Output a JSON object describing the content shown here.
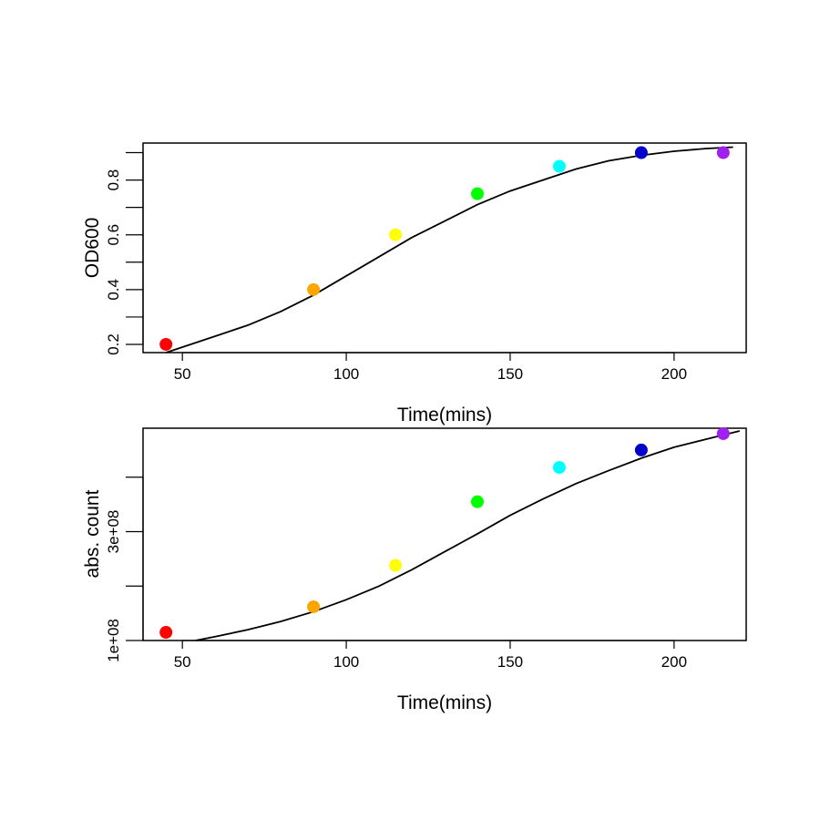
{
  "chart_data": [
    {
      "type": "scatter",
      "xlabel": "Time(mins)",
      "ylabel": "OD600",
      "xlim": [
        38,
        222
      ],
      "ylim": [
        0.17,
        0.935
      ],
      "x_ticks": [
        50,
        100,
        150,
        200
      ],
      "y_ticks": [
        0.2,
        0.3,
        0.4,
        0.5,
        0.6,
        0.7,
        0.8,
        0.9
      ],
      "y_tick_labels": [
        "0.2",
        "",
        "0.4",
        "",
        "0.6",
        "",
        "0.8",
        ""
      ],
      "points": [
        {
          "x": 45,
          "y": 0.2,
          "color": "#ff0000"
        },
        {
          "x": 90,
          "y": 0.4,
          "color": "#ffa500"
        },
        {
          "x": 115,
          "y": 0.6,
          "color": "#ffff00"
        },
        {
          "x": 140,
          "y": 0.75,
          "color": "#00ff00"
        },
        {
          "x": 165,
          "y": 0.85,
          "color": "#00ffff"
        },
        {
          "x": 190,
          "y": 0.9,
          "color": "#0000cd"
        },
        {
          "x": 215,
          "y": 0.9,
          "color": "#a020f0"
        }
      ],
      "fit_curve": {
        "x": [
          45,
          50,
          60,
          70,
          80,
          90,
          100,
          110,
          120,
          130,
          140,
          150,
          160,
          170,
          180,
          190,
          200,
          210,
          218
        ],
        "y": [
          0.17,
          0.19,
          0.23,
          0.27,
          0.32,
          0.38,
          0.45,
          0.52,
          0.59,
          0.65,
          0.71,
          0.76,
          0.8,
          0.84,
          0.87,
          0.89,
          0.905,
          0.915,
          0.92
        ]
      }
    },
    {
      "type": "scatter",
      "xlabel": "Time(mins)",
      "ylabel": "abs. count",
      "xlim": [
        38,
        222
      ],
      "ylim": [
        100000000.0,
        490000000.0
      ],
      "x_ticks": [
        50,
        100,
        150,
        200
      ],
      "y_ticks": [
        100000000.0,
        200000000.0,
        300000000.0,
        400000000.0
      ],
      "y_tick_labels": [
        "1e+08",
        "",
        "3e+08",
        ""
      ],
      "points": [
        {
          "x": 45,
          "y": 115000000.0,
          "color": "#ff0000"
        },
        {
          "x": 90,
          "y": 162000000.0,
          "color": "#ffa500"
        },
        {
          "x": 115,
          "y": 238000000.0,
          "color": "#ffff00"
        },
        {
          "x": 140,
          "y": 355000000.0,
          "color": "#00ff00"
        },
        {
          "x": 165,
          "y": 418000000.0,
          "color": "#00ffff"
        },
        {
          "x": 190,
          "y": 450000000.0,
          "color": "#0000cd"
        },
        {
          "x": 215,
          "y": 480000000.0,
          "color": "#a020f0"
        }
      ],
      "fit_curve": {
        "x": [
          54,
          60,
          70,
          80,
          90,
          100,
          110,
          120,
          130,
          140,
          150,
          160,
          170,
          180,
          190,
          200,
          210,
          220
        ],
        "y": [
          100000000.0,
          107000000.0,
          120000000.0,
          135000000.0,
          153000000.0,
          175000000.0,
          200000000.0,
          230000000.0,
          263000000.0,
          296000000.0,
          330000000.0,
          360000000.0,
          388000000.0,
          412000000.0,
          435000000.0,
          455000000.0,
          470000000.0,
          485000000.0
        ]
      }
    }
  ]
}
